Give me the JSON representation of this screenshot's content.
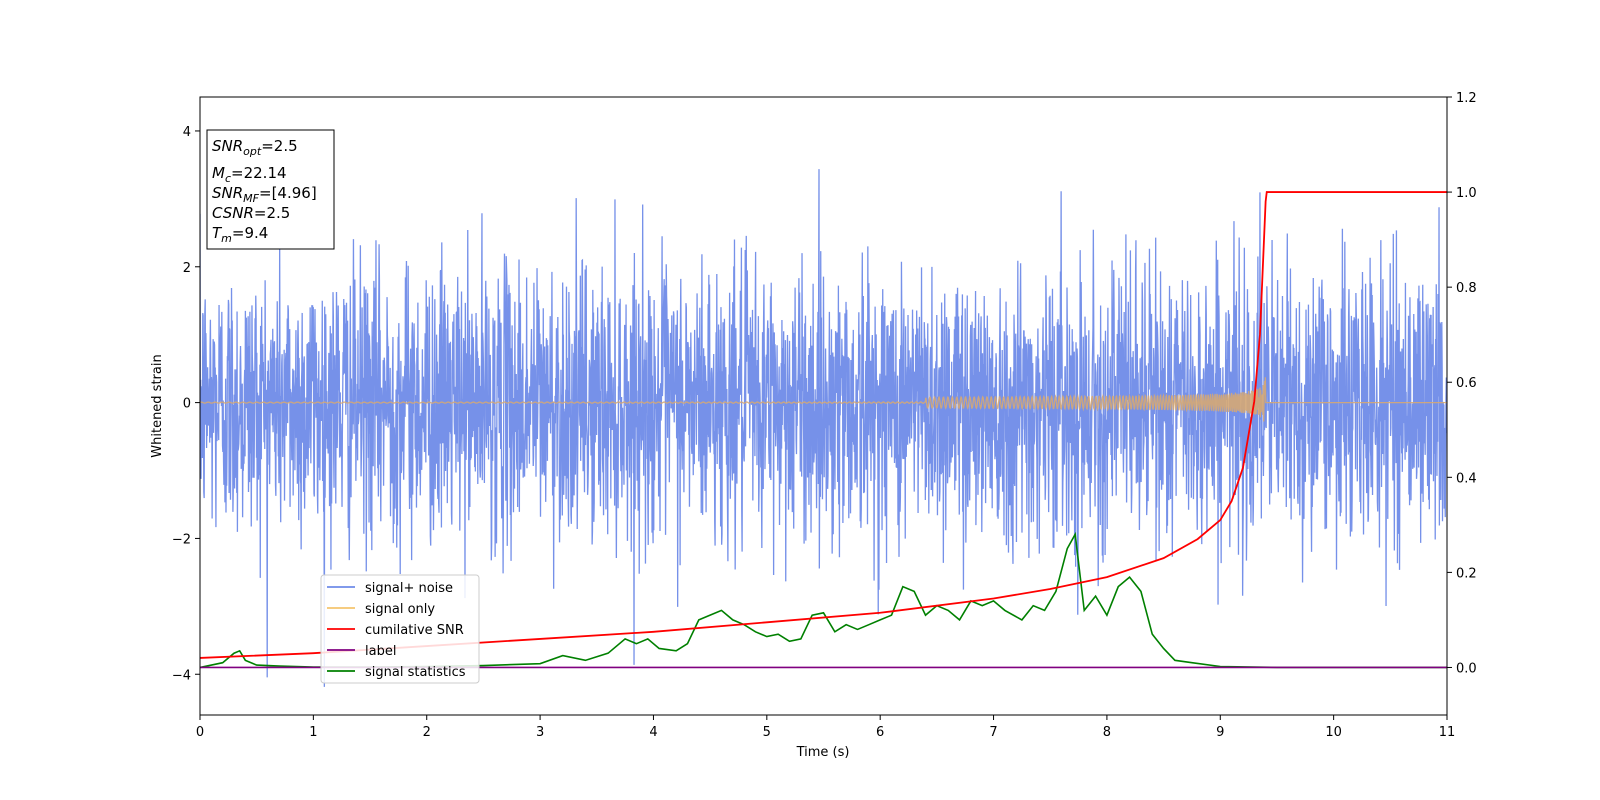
{
  "chart_data": {
    "type": "line",
    "title": "",
    "xlabel": "Time (s)",
    "ylabel": "Whitened strain",
    "xlim": [
      0,
      11
    ],
    "ylim_left": [
      -4.6,
      4.5
    ],
    "ylim_right": [
      -0.1,
      1.2
    ],
    "x_ticks": [
      0,
      1,
      2,
      3,
      4,
      5,
      6,
      7,
      8,
      9,
      10,
      11
    ],
    "y_ticks_left": [
      -4,
      -2,
      0,
      2,
      4
    ],
    "y_ticks_right": [
      0.0,
      0.2,
      0.4,
      0.6,
      0.8,
      1.0,
      1.2
    ],
    "y_tick_labels_left": [
      "−4",
      "−2",
      "0",
      "2",
      "4"
    ],
    "y_tick_labels_right": [
      "0.0",
      "0.2",
      "0.4",
      "0.6",
      "0.8",
      "1.0",
      "1.2"
    ],
    "grid": false,
    "legend_position": "lower-left",
    "series": [
      {
        "name": "signal+ noise",
        "axis": "left",
        "color": "#6f8be8",
        "kind": "noise",
        "approx_std": 1.0,
        "x_range": [
          0,
          11
        ]
      },
      {
        "name": "signal only",
        "axis": "left",
        "color": "#f5c56e",
        "kind": "chirp",
        "merger_time": 9.4,
        "peak_amplitude": 0.5
      },
      {
        "name": "cumilative SNR",
        "axis": "right",
        "color": "#ff0000",
        "x": [
          0,
          1,
          2,
          3,
          4,
          5,
          6,
          7,
          7.5,
          8,
          8.5,
          8.8,
          9.0,
          9.1,
          9.2,
          9.3,
          9.35,
          9.4,
          9.41,
          11
        ],
        "values": [
          0.02,
          0.03,
          0.045,
          0.06,
          0.075,
          0.095,
          0.115,
          0.145,
          0.165,
          0.19,
          0.23,
          0.27,
          0.31,
          0.35,
          0.42,
          0.56,
          0.7,
          0.98,
          1.0,
          1.0
        ]
      },
      {
        "name": "label",
        "axis": "right",
        "color": "#800080",
        "x": [
          0,
          11
        ],
        "values": [
          0,
          0
        ]
      },
      {
        "name": "signal statistics",
        "axis": "right",
        "color": "#008000",
        "x": [
          0,
          0.2,
          0.3,
          0.35,
          0.4,
          0.5,
          0.7,
          1,
          1.5,
          2,
          2.5,
          3,
          3.2,
          3.4,
          3.6,
          3.75,
          3.85,
          3.95,
          4.05,
          4.2,
          4.3,
          4.4,
          4.5,
          4.6,
          4.7,
          4.8,
          4.9,
          5.0,
          5.1,
          5.2,
          5.3,
          5.4,
          5.5,
          5.6,
          5.7,
          5.8,
          5.9,
          6.0,
          6.1,
          6.2,
          6.3,
          6.4,
          6.5,
          6.6,
          6.7,
          6.8,
          6.9,
          7.0,
          7.1,
          7.25,
          7.35,
          7.45,
          7.55,
          7.65,
          7.72,
          7.8,
          7.9,
          8.0,
          8.1,
          8.2,
          8.3,
          8.4,
          8.5,
          8.6,
          8.75,
          9.0,
          9.5,
          10,
          11
        ],
        "values": [
          0.0,
          0.01,
          0.03,
          0.035,
          0.015,
          0.005,
          0.003,
          0.001,
          0.001,
          0.002,
          0.004,
          0.008,
          0.025,
          0.015,
          0.03,
          0.06,
          0.05,
          0.06,
          0.04,
          0.035,
          0.05,
          0.1,
          0.11,
          0.12,
          0.1,
          0.09,
          0.075,
          0.065,
          0.07,
          0.055,
          0.06,
          0.11,
          0.115,
          0.075,
          0.09,
          0.08,
          0.09,
          0.1,
          0.11,
          0.17,
          0.16,
          0.11,
          0.13,
          0.12,
          0.1,
          0.14,
          0.13,
          0.14,
          0.12,
          0.1,
          0.13,
          0.12,
          0.16,
          0.25,
          0.28,
          0.12,
          0.15,
          0.11,
          0.17,
          0.19,
          0.16,
          0.07,
          0.04,
          0.015,
          0.01,
          0.002,
          0.0,
          0.0,
          0.0
        ]
      }
    ],
    "annotation_box": {
      "lines": [
        {
          "main": "SNR",
          "sub": "opt",
          "rest": "=2.5"
        },
        {
          "main": "M",
          "sub": "c",
          "rest": "=22.14"
        },
        {
          "main": "SNR",
          "sub": "MF",
          "rest": "=[4.96]"
        },
        {
          "main": "CSNR",
          "sub": "",
          "rest": "=2.5"
        },
        {
          "main": "T",
          "sub": "m",
          "rest": "=9.4"
        }
      ]
    }
  }
}
